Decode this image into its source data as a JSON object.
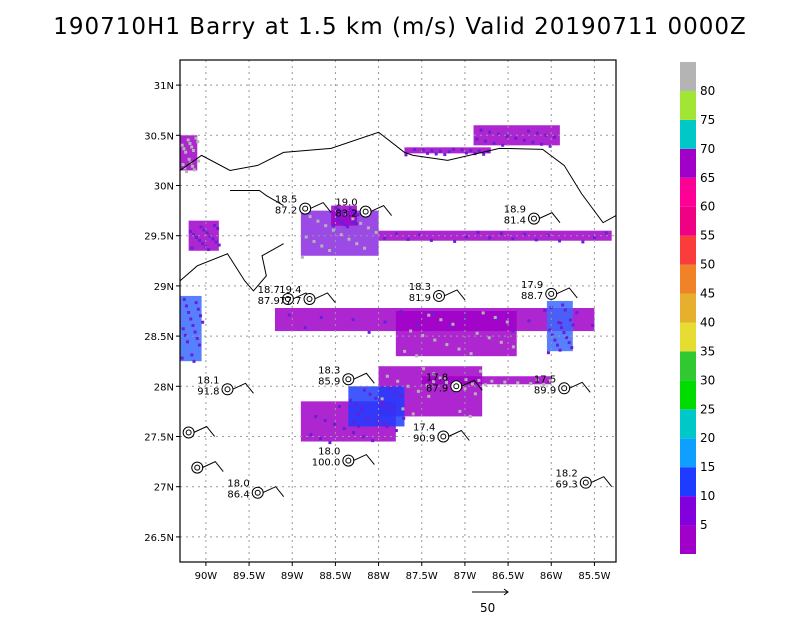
{
  "title": "190710H1 Barry at 1.5 km (m/s) Valid 20190711 0000Z",
  "map": {
    "lon_range": [
      -90.3,
      -85.25
    ],
    "lat_range": [
      26.25,
      31.25
    ],
    "lat_ticks": [
      {
        "value": 31.0,
        "label": "31N"
      },
      {
        "value": 30.5,
        "label": "30.5N"
      },
      {
        "value": 30.0,
        "label": "30N"
      },
      {
        "value": 29.5,
        "label": "29.5N"
      },
      {
        "value": 29.0,
        "label": "29N"
      },
      {
        "value": 28.5,
        "label": "28.5N"
      },
      {
        "value": 28.0,
        "label": "28N"
      },
      {
        "value": 27.5,
        "label": "27.5N"
      },
      {
        "value": 27.0,
        "label": "27N"
      },
      {
        "value": 26.5,
        "label": "26.5N"
      }
    ],
    "lon_ticks": [
      {
        "value": -90.0,
        "label": "90W"
      },
      {
        "value": -89.5,
        "label": "89.5W"
      },
      {
        "value": -89.0,
        "label": "89W"
      },
      {
        "value": -88.5,
        "label": "88.5W"
      },
      {
        "value": -88.0,
        "label": "88W"
      },
      {
        "value": -87.5,
        "label": "87.5W"
      },
      {
        "value": -87.0,
        "label": "87W"
      },
      {
        "value": -86.5,
        "label": "86.5W"
      },
      {
        "value": -86.0,
        "label": "86W"
      },
      {
        "value": -85.5,
        "label": "85.5W"
      }
    ],
    "grid": true,
    "coastline": [
      [
        -90.3,
        30.15
      ],
      [
        -90.05,
        30.3
      ],
      [
        -89.72,
        30.15
      ],
      [
        -89.4,
        30.2
      ],
      [
        -89.1,
        30.33
      ],
      [
        -88.55,
        30.37
      ],
      [
        -88.0,
        30.53
      ],
      [
        -87.7,
        30.33
      ],
      [
        -87.6,
        30.3
      ],
      [
        -87.2,
        30.25
      ],
      [
        -86.6,
        30.37
      ],
      [
        -86.1,
        30.36
      ],
      [
        -85.85,
        30.2
      ],
      [
        -85.65,
        29.92
      ],
      [
        -85.4,
        29.63
      ],
      [
        -85.25,
        29.7
      ]
    ],
    "coastline2": [
      [
        -90.3,
        29.05
      ],
      [
        -90.1,
        29.2
      ],
      [
        -89.75,
        29.32
      ],
      [
        -89.55,
        29.05
      ],
      [
        -89.45,
        28.95
      ],
      [
        -89.3,
        29.1
      ],
      [
        -89.35,
        29.3
      ],
      [
        -89.1,
        29.42
      ]
    ],
    "coastline3": [
      [
        -89.72,
        29.95
      ],
      [
        -89.55,
        29.95
      ],
      [
        -89.38,
        29.95
      ],
      [
        -89.3,
        29.9
      ],
      [
        -89.1,
        29.8
      ]
    ]
  },
  "observations": [
    {
      "lon": -88.85,
      "lat": 29.77,
      "temp": "18.5",
      "value": "87.2",
      "label_side": "left"
    },
    {
      "lon": -88.15,
      "lat": 29.74,
      "temp": "19.0",
      "value": "83.2",
      "label_side": "left"
    },
    {
      "lon": -86.2,
      "lat": 29.67,
      "temp": "18.9",
      "value": "81.4",
      "label_side": "left"
    },
    {
      "lon": -89.05,
      "lat": 28.87,
      "temp": "18.7",
      "value": "87.9",
      "label_side": "left"
    },
    {
      "lon": -88.8,
      "lat": 28.87,
      "temp": "19.4",
      "value": "77.7",
      "label_side": "left"
    },
    {
      "lon": -87.3,
      "lat": 28.9,
      "temp": "18.3",
      "value": "81.9",
      "label_side": "left"
    },
    {
      "lon": -86.0,
      "lat": 28.92,
      "temp": "17.9",
      "value": "88.7",
      "label_side": "left"
    },
    {
      "lon": -89.75,
      "lat": 27.97,
      "temp": "18.1",
      "value": "91.8",
      "label_side": "left"
    },
    {
      "lon": -88.35,
      "lat": 28.07,
      "temp": "18.3",
      "value": "85.9",
      "label_side": "left"
    },
    {
      "lon": -87.1,
      "lat": 28.0,
      "temp": "17.8",
      "value": "87.9",
      "label_side": "left"
    },
    {
      "lon": -85.85,
      "lat": 27.98,
      "temp": "17.5",
      "value": "89.9",
      "label_side": "left"
    },
    {
      "lon": -87.25,
      "lat": 27.5,
      "temp": "17.4",
      "value": "90.9",
      "label_side": "left"
    },
    {
      "lon": -88.35,
      "lat": 27.26,
      "temp": "18.0",
      "value": "100.0",
      "label_side": "left"
    },
    {
      "lon": -85.6,
      "lat": 27.04,
      "temp": "18.2",
      "value": "69.3",
      "label_side": "left"
    },
    {
      "lon": -89.4,
      "lat": 26.94,
      "temp": "18.0",
      "value": "86.4",
      "label_side": "left"
    },
    {
      "lon": -90.2,
      "lat": 27.54,
      "temp": "",
      "value": "",
      "label_side": "none"
    },
    {
      "lon": -90.1,
      "lat": 27.19,
      "temp": "",
      "value": "",
      "label_side": "none"
    }
  ],
  "colorbar": {
    "levels": [
      "5",
      "10",
      "15",
      "20",
      "25",
      "30",
      "35",
      "40",
      "45",
      "50",
      "55",
      "60",
      "65",
      "70",
      "75",
      "80"
    ],
    "colors": [
      "#a000c8",
      "#8200dc",
      "#1e3cff",
      "#0fa0ff",
      "#00c8c8",
      "#00dc00",
      "#32c832",
      "#e6dc32",
      "#e6af2d",
      "#f08228",
      "#fa3c3c",
      "#f00082",
      "#ff0096",
      "#a000c8",
      "#00c8c8",
      "#a0e632",
      "#b4b4b4"
    ]
  },
  "reference_vector": {
    "label": "50"
  }
}
